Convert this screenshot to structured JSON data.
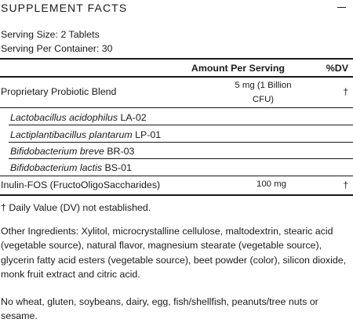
{
  "header": {
    "title": "SUPPLEMENT FACTS",
    "collapse_icon": "minus-icon"
  },
  "serving": {
    "size": "Serving Size: 2 Tablets",
    "per_container": "Serving Per Container: 30"
  },
  "table": {
    "col_amount": "Amount Per Serving",
    "col_dv": "%DV",
    "blend": {
      "name": "Proprietary Probiotic Blend",
      "amount_line1": "5 mg (1 Billion",
      "amount_line2": "CFU)",
      "dv": "†"
    },
    "strains": [
      {
        "genus": "Lactobacillus acidophilus",
        "code": "LA-02"
      },
      {
        "genus": "Lactiplantibacillus plantarum",
        "code": "LP-01"
      },
      {
        "genus": "Bifidobacterium breve",
        "code": "BR-03"
      },
      {
        "genus": "Bifidobacterium lactis",
        "code": "BS-01"
      }
    ],
    "inulin": {
      "name": "Inulin-FOS (FructoOligoSaccharides)",
      "amount": "100 mg",
      "dv": "†"
    }
  },
  "footnote": "† Daily Value (DV) not established.",
  "other_ingredients": {
    "line1": "Other Ingredients: Xylitol, microcrystalline cellulose, maltodextrin, stearic acid",
    "line2": "(vegetable source), natural flavor, magnesium stearate (vegetable source),",
    "line3": "glycerin fatty acid esters (vegetable source), beet powder (color), silicon dioxide,",
    "line4": "monk fruit extract and citric acid."
  },
  "allergens": {
    "line1": "No wheat, gluten, soybeans, dairy, egg, fish/shellfish, peanuts/tree nuts or",
    "line2": "sesame."
  }
}
